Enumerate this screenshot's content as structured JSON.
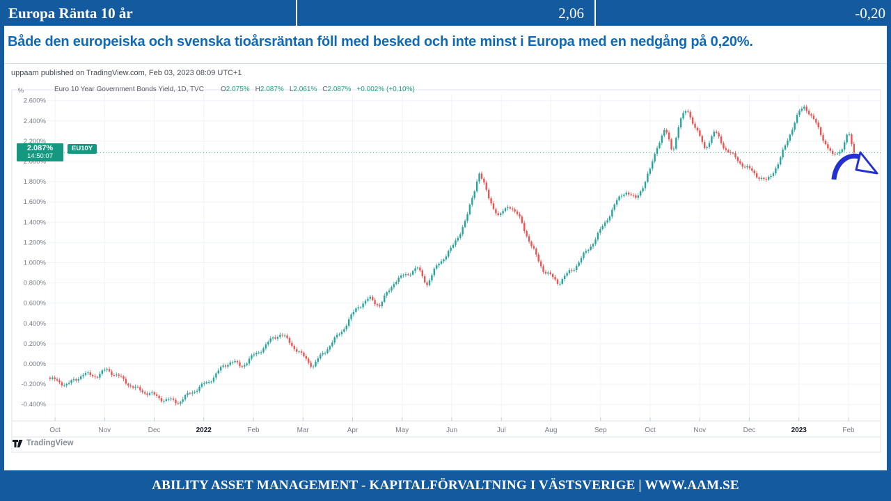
{
  "chart_data": {
    "type": "candlestick",
    "title": "Euro 10 Year Government Bonds Yield, 1D, TVC",
    "symbol": "EU10Y",
    "unit": "%",
    "timeframe": "1D",
    "ohlc_latest": {
      "open": 2.075,
      "high": 2.087,
      "low": 2.061,
      "close": 2.087,
      "change_abs": "+0.002%",
      "change_pct": "+0.10%"
    },
    "last_price": 2.087,
    "last_time": "14:50:07",
    "ylim": [
      -0.52,
      2.72
    ],
    "y_ticks": [
      2.6,
      2.4,
      2.2,
      2.0,
      1.8,
      1.6,
      1.4,
      1.2,
      1.0,
      0.8,
      0.6,
      0.4,
      0.2,
      0.0,
      -0.2,
      -0.4
    ],
    "x_labels": [
      {
        "label": "Oct"
      },
      {
        "label": "Nov"
      },
      {
        "label": "Dec"
      },
      {
        "label": "2022",
        "bold": true
      },
      {
        "label": "Feb"
      },
      {
        "label": "Mar"
      },
      {
        "label": "Apr"
      },
      {
        "label": "May"
      },
      {
        "label": "Jun"
      },
      {
        "label": "Jul"
      },
      {
        "label": "Aug"
      },
      {
        "label": "Sep"
      },
      {
        "label": "Oct"
      },
      {
        "label": "Nov"
      },
      {
        "label": "Dec"
      },
      {
        "label": "2023",
        "bold": true
      },
      {
        "label": "Feb"
      }
    ],
    "grid": true,
    "legend_position": "top-left",
    "candle_count": 340,
    "price_path_anchors": [
      [
        -0.1,
        -0.16
      ],
      [
        0.25,
        -0.2
      ],
      [
        0.55,
        -0.09
      ],
      [
        0.85,
        -0.12
      ],
      [
        1.05,
        -0.07
      ],
      [
        1.3,
        -0.14
      ],
      [
        1.6,
        -0.23
      ],
      [
        1.9,
        -0.28
      ],
      [
        2.2,
        -0.36
      ],
      [
        2.5,
        -0.39
      ],
      [
        2.8,
        -0.26
      ],
      [
        3.1,
        -0.16
      ],
      [
        3.4,
        -0.02
      ],
      [
        3.55,
        0.02
      ],
      [
        3.75,
        -0.04
      ],
      [
        4.1,
        0.12
      ],
      [
        4.4,
        0.27
      ],
      [
        4.55,
        0.31
      ],
      [
        4.8,
        0.17
      ],
      [
        5.0,
        0.06
      ],
      [
        5.2,
        -0.03
      ],
      [
        5.5,
        0.17
      ],
      [
        5.8,
        0.35
      ],
      [
        6.1,
        0.56
      ],
      [
        6.35,
        0.63
      ],
      [
        6.55,
        0.57
      ],
      [
        6.85,
        0.83
      ],
      [
        7.1,
        0.9
      ],
      [
        7.3,
        0.95
      ],
      [
        7.5,
        0.78
      ],
      [
        7.75,
        0.99
      ],
      [
        8.0,
        1.14
      ],
      [
        8.3,
        1.45
      ],
      [
        8.55,
        1.9
      ],
      [
        8.75,
        1.63
      ],
      [
        8.95,
        1.43
      ],
      [
        9.15,
        1.57
      ],
      [
        9.4,
        1.42
      ],
      [
        9.6,
        1.18
      ],
      [
        9.85,
        0.93
      ],
      [
        10.15,
        0.79
      ],
      [
        10.45,
        0.93
      ],
      [
        10.75,
        1.14
      ],
      [
        11.05,
        1.37
      ],
      [
        11.3,
        1.58
      ],
      [
        11.5,
        1.7
      ],
      [
        11.7,
        1.61
      ],
      [
        11.85,
        1.75
      ],
      [
        12.0,
        1.92
      ],
      [
        12.15,
        2.18
      ],
      [
        12.3,
        2.33
      ],
      [
        12.45,
        2.1
      ],
      [
        12.6,
        2.4
      ],
      [
        12.75,
        2.5
      ],
      [
        12.95,
        2.28
      ],
      [
        13.1,
        2.12
      ],
      [
        13.3,
        2.3
      ],
      [
        13.5,
        2.15
      ],
      [
        13.7,
        2.05
      ],
      [
        13.9,
        1.95
      ],
      [
        14.15,
        1.85
      ],
      [
        14.35,
        1.79
      ],
      [
        14.6,
        2.0
      ],
      [
        14.85,
        2.33
      ],
      [
        15.0,
        2.49
      ],
      [
        15.12,
        2.55
      ],
      [
        15.3,
        2.4
      ],
      [
        15.5,
        2.2
      ],
      [
        15.68,
        2.04
      ],
      [
        15.85,
        2.12
      ],
      [
        16.0,
        2.29
      ],
      [
        16.11,
        2.087
      ]
    ],
    "colors": {
      "up": "#26a69a",
      "down": "#ef5350",
      "grid": "#f0f3fa",
      "axis_text": "#787b86",
      "axis_text_bold": "#131722",
      "price_line": "#089981",
      "badge_bg": "#149980",
      "border": "#e0e3eb"
    },
    "annotation": {
      "type": "curved-down-arrow",
      "color": "#2430cf"
    }
  },
  "ui": {
    "header": {
      "title": "Europa Ränta 10 år",
      "value": "2,06",
      "change": "-0,20"
    },
    "subtitle": "Både den europeiska och svenska tioårsräntan föll med besked och inte minst i Europa med en nedgång på 0,20%.",
    "chart": {
      "attribution": "uppaam published on TradingView.com, Feb 03, 2023 08:09 UTC+1",
      "legend_title": "Euro 10 Year Government Bonds Yield, 1D, TVC",
      "o_key": "O",
      "o_val": "2.075%",
      "h_key": "H",
      "h_val": "2.087%",
      "l_key": "L",
      "l_val": "2.061%",
      "c_key": "C",
      "c_val": "2.087%",
      "change_val": "+0.002% (+0.10%)"
    },
    "price_label": {
      "price": "2.087%",
      "time": "14:50:07",
      "tag": "EU10Y"
    },
    "watermark": "TradingView",
    "footer": "ABILITY ASSET MANAGEMENT -  KAPITALFÖRVALTNING I VÄSTSVERIGE   |   WWW.AAM.SE",
    "colors": {
      "brand_blue": "#135a9e",
      "subtitle_text": "#1069b4",
      "header_divider": "#ffffff"
    }
  }
}
